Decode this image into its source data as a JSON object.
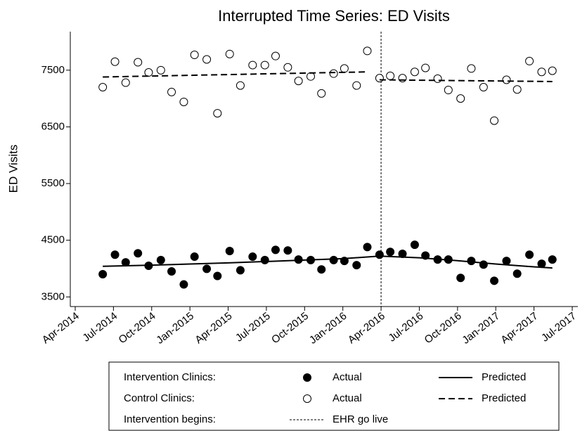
{
  "chart_data": {
    "type": "scatter",
    "title": "Interrupted Time Series: ED Visits",
    "y_label": "ED Visits",
    "xlim": [
      2014.25,
      2017.5
    ],
    "xticks": [
      {
        "value": 2014.25,
        "label": "Apr-2014"
      },
      {
        "value": 2014.5,
        "label": "Jul-2014"
      },
      {
        "value": 2014.75,
        "label": "Oct-2014"
      },
      {
        "value": 2015.0,
        "label": "Jan-2015"
      },
      {
        "value": 2015.25,
        "label": "Apr-2015"
      },
      {
        "value": 2015.5,
        "label": "Jul-2015"
      },
      {
        "value": 2015.75,
        "label": "Oct-2015"
      },
      {
        "value": 2016.0,
        "label": "Jan-2016"
      },
      {
        "value": 2016.25,
        "label": "Apr-2016"
      },
      {
        "value": 2016.5,
        "label": "Jul-2016"
      },
      {
        "value": 2016.75,
        "label": "Oct-2016"
      },
      {
        "value": 2017.0,
        "label": "Jan-2017"
      },
      {
        "value": 2017.25,
        "label": "Apr-2017"
      },
      {
        "value": 2017.5,
        "label": "Jul-2017"
      }
    ],
    "ylim": [
      3330,
      8180
    ],
    "yticks": [
      3500,
      4500,
      5500,
      6500,
      7500
    ],
    "event_x": 2016.25,
    "x": [
      2014.43,
      2014.51,
      2014.58,
      2014.66,
      2014.73,
      2014.81,
      2014.88,
      2014.96,
      2015.03,
      2015.11,
      2015.18,
      2015.26,
      2015.33,
      2015.41,
      2015.49,
      2015.56,
      2015.64,
      2015.71,
      2015.79,
      2015.86,
      2015.94,
      2016.01,
      2016.09,
      2016.16,
      2016.24,
      2016.31,
      2016.39,
      2016.47,
      2016.54,
      2016.62,
      2016.69,
      2016.77,
      2016.84,
      2016.92,
      2016.99,
      2017.07,
      2017.14,
      2017.22,
      2017.3,
      2017.37
    ],
    "series": [
      {
        "group": "Intervention Clinics:",
        "name": "Actual",
        "style": "filled",
        "color": "#000000",
        "values": [
          3900,
          4245,
          4110,
          4270,
          4050,
          4150,
          3950,
          3720,
          4210,
          3995,
          3870,
          4310,
          3970,
          4210,
          4150,
          4330,
          4320,
          4160,
          4150,
          3985,
          4150,
          4135,
          4060,
          4380,
          4245,
          4295,
          4260,
          4420,
          4230,
          4160,
          4160,
          3835,
          4135,
          4070,
          3785,
          4135,
          3910,
          4245,
          4085,
          4160
        ]
      },
      {
        "group": "Control Clinics:",
        "name": "Actual",
        "style": "open",
        "color": "#000000",
        "values": [
          7200,
          7650,
          7280,
          7640,
          7460,
          7500,
          7115,
          6940,
          7770,
          7690,
          6740,
          7785,
          7230,
          7590,
          7590,
          7750,
          7550,
          7310,
          7390,
          7090,
          7440,
          7530,
          7230,
          7840,
          7360,
          7400,
          7360,
          7470,
          7540,
          7350,
          7150,
          7000,
          7530,
          7200,
          6610,
          7330,
          7160,
          7660,
          7470,
          7490
        ]
      },
      {
        "group": "Intervention Clinics:",
        "name": "Predicted",
        "style": "solid",
        "color": "#000000",
        "x": [
          2014.43,
          2014.75,
          2015.0,
          2015.25,
          2015.5,
          2015.75,
          2016.0,
          2016.24,
          2016.5,
          2016.75,
          2017.0,
          2017.2,
          2017.37
        ],
        "values": [
          4040,
          4060,
          4080,
          4100,
          4125,
          4150,
          4175,
          4220,
          4190,
          4140,
          4080,
          4040,
          4010
        ]
      },
      {
        "group": "Control Clinics:",
        "name": "Predicted",
        "style": "dashed",
        "color": "#000000",
        "x": [
          2014.43,
          2016.16,
          null,
          2016.24,
          2017.37
        ],
        "values": [
          7380,
          7470,
          null,
          7330,
          7300
        ]
      }
    ],
    "event_legend": {
      "group": "Intervention begins:",
      "name": "EHR go live"
    }
  }
}
